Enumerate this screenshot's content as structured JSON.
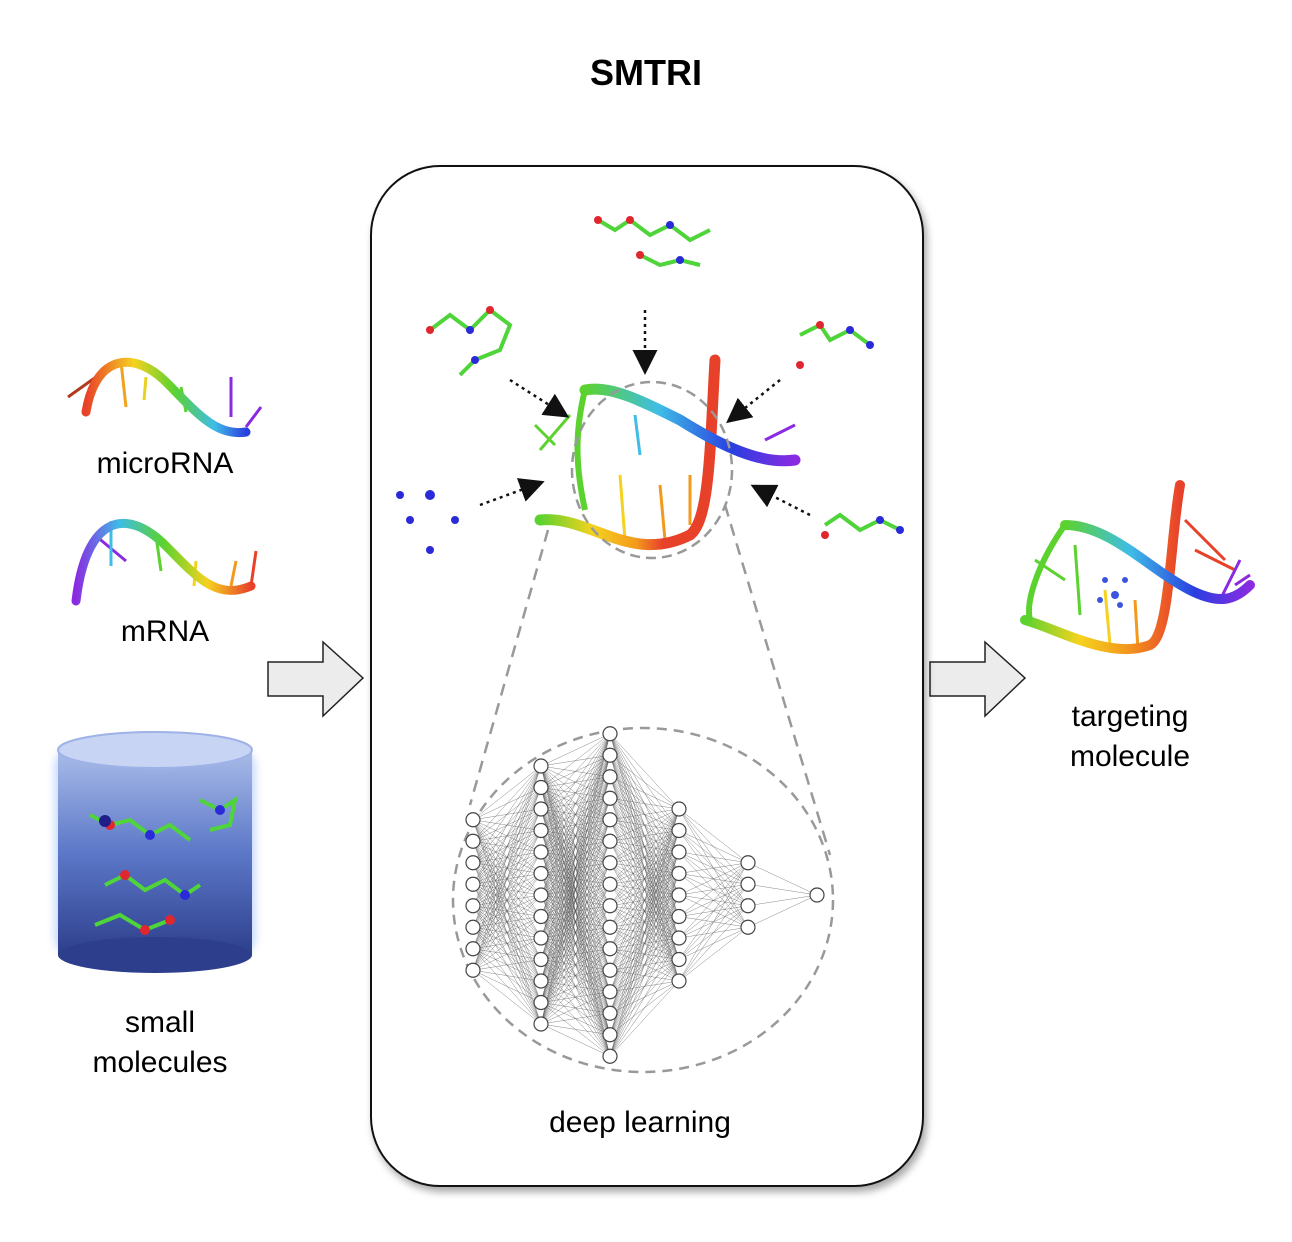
{
  "title": "SMTRI",
  "inputs": {
    "microrna_label": "microRNA",
    "mrna_label": "mRNA",
    "small_molecules_label": "small\nmolecules"
  },
  "model": {
    "label": "deep learning",
    "layers": [
      8,
      13,
      16,
      9,
      4,
      1
    ]
  },
  "output": {
    "label": "targeting\nmolecule"
  },
  "colors": {
    "arrow_fill": "#ececec",
    "rna_gradient": [
      "#e8412a",
      "#f39a1c",
      "#f5d21f",
      "#5cd22f",
      "#3fbde6",
      "#2a3fe0",
      "#8a2be2"
    ],
    "cylinder": "#3b55b8",
    "atom_carbon": "#4fd43a",
    "atom_oxygen": "#e0262e",
    "atom_nitrogen": "#2a2ad8"
  }
}
